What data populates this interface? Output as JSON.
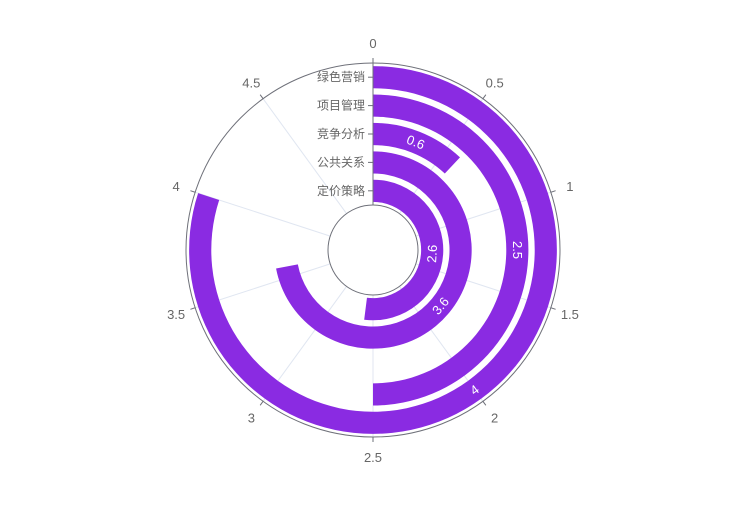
{
  "chart_data": {
    "type": "bar",
    "subtype": "polar-radial-bar",
    "categories": [
      "定价策略",
      "公共关系",
      "竞争分析",
      "项目管理",
      "绿色营销"
    ],
    "values": [
      2.6,
      3.6,
      0.6,
      2.5,
      4
    ],
    "angle_axis": {
      "min": 0,
      "max": 5,
      "ticks": [
        "0",
        "0.5",
        "1",
        "1.5",
        "2",
        "2.5",
        "3",
        "3.5",
        "4",
        "4.5"
      ]
    },
    "data_labels": [
      "2.6",
      "3.6",
      "0.6",
      "2.5",
      "4"
    ],
    "colors": {
      "bar": "#8a2be2",
      "axis": "#6e7079",
      "grid": "#e0e6f1",
      "label": "#666666"
    },
    "grid": true,
    "legend": "none"
  }
}
